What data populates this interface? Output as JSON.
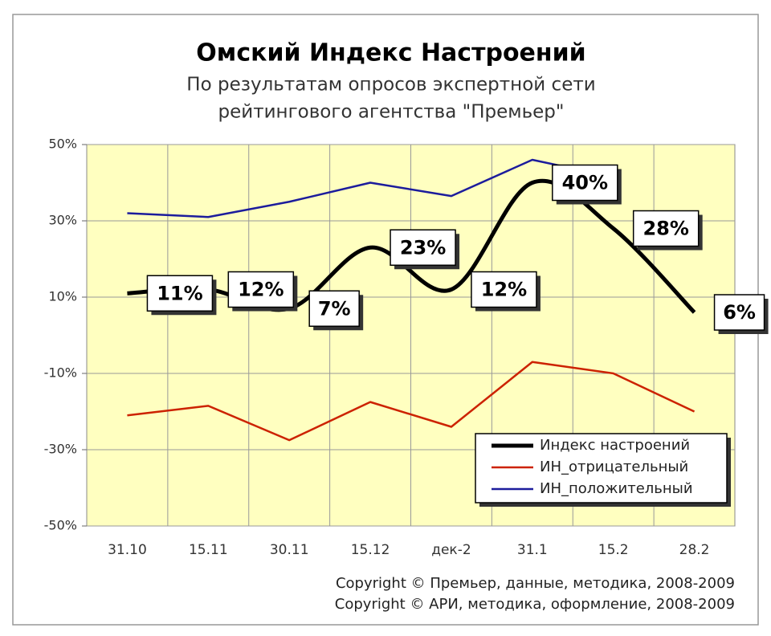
{
  "chart_data": {
    "type": "line",
    "title": "Омский Индекс Настроений",
    "subtitle": [
      "По результатам опросов экспертной сети",
      "рейтингового агентства \"Премьер\""
    ],
    "categories": [
      "31.10",
      "15.11",
      "30.11",
      "15.12",
      "дек-2",
      "31.1",
      "15.2",
      "28.2"
    ],
    "ylim": [
      -50,
      50
    ],
    "yticks": [
      {
        "value": -50,
        "label": "-50%"
      },
      {
        "value": -30,
        "label": "-30%"
      },
      {
        "value": -10,
        "label": "-10%"
      },
      {
        "value": 10,
        "label": "10%"
      },
      {
        "value": 30,
        "label": "30%"
      },
      {
        "value": 50,
        "label": "50%"
      }
    ],
    "grid": true,
    "legend": "lower right",
    "series": [
      {
        "name": "Индекс настроений",
        "color": "#000000",
        "smooth": true,
        "values": [
          11,
          12,
          7,
          23,
          12,
          40,
          28,
          6
        ],
        "value_labels": [
          "11%",
          "12%",
          "7%",
          "23%",
          "12%",
          "40%",
          "28%",
          "6%"
        ]
      },
      {
        "name": "ИН_отрицательный",
        "color": "#cc2200",
        "values": [
          -21,
          -18.5,
          -27.5,
          -17.5,
          -24,
          -7,
          -10,
          -20
        ]
      },
      {
        "name": "ИН_положительный",
        "color": "#1c1c9c",
        "values": [
          32,
          31,
          35,
          40,
          36.5,
          46,
          41.5,
          null
        ]
      }
    ],
    "copyright": [
      "Copyright © Премьер, данные, методика, 2008-2009",
      "Copyright © АРИ, методика, оформление, 2008-2009"
    ]
  }
}
